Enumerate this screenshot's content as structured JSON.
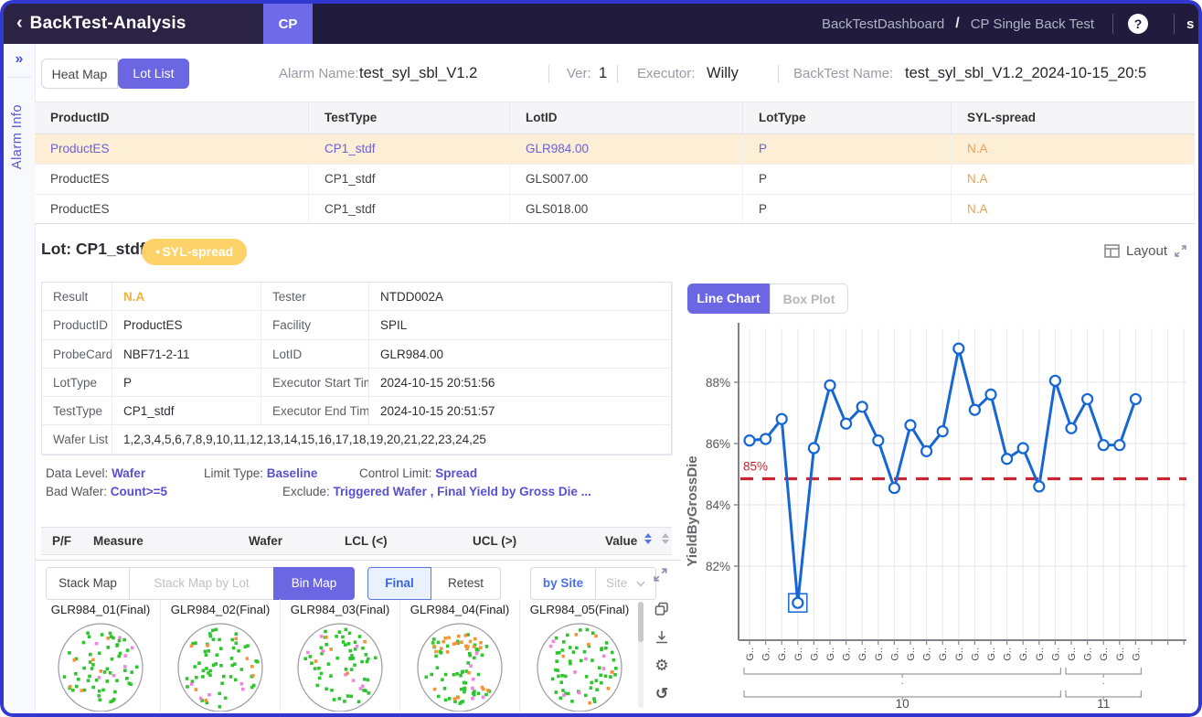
{
  "colors": {
    "accent_purple": "#6b66e2",
    "header_dark": "#211c3d",
    "badge_yellow": "#fcd269",
    "warning_orange": "#efa052",
    "link_purple": "#6a62dd",
    "criteria_purple": "#5750d2",
    "chart_blue": "#1667d3",
    "control_red": "#c92633"
  },
  "header": {
    "back_icon": "‹",
    "title": "BackTest-Analysis",
    "tab": "CP",
    "breadcrumb": {
      "parent": "BackTestDashboard",
      "separator": "/",
      "current": "CP Single Back Test"
    },
    "help": "?",
    "user_partial": "s"
  },
  "sidebar": {
    "collapse_icon": "»",
    "panel_label": "Alarm Info"
  },
  "view_tabs": {
    "heat_map": "Heat Map",
    "lot_list": "Lot List"
  },
  "alarm_bar": {
    "alarm_name_label": "Alarm Name:",
    "alarm_name": "test_syl_sbl_V1.2",
    "ver_label": "Ver:",
    "ver": "1",
    "executor_label": "Executor:",
    "executor": "Willy",
    "backtest_name_label": "BackTest Name:",
    "backtest_name": "test_syl_sbl_V1.2_2024-10-15_20:5"
  },
  "lot_table": {
    "columns": [
      "ProductID",
      "TestType",
      "LotID",
      "LotType",
      "SYL-spread"
    ],
    "rows": [
      {
        "product_id": "ProductES",
        "test_type": "CP1_stdf",
        "lot_id": "GLR984.00",
        "lot_type": "P",
        "syl_spread": "N.A",
        "selected": true
      },
      {
        "product_id": "ProductES",
        "test_type": "CP1_stdf",
        "lot_id": "GLS007.00",
        "lot_type": "P",
        "syl_spread": "N.A",
        "selected": false
      },
      {
        "product_id": "ProductES",
        "test_type": "CP1_stdf",
        "lot_id": "GLS018.00",
        "lot_type": "P",
        "syl_spread": "N.A",
        "selected": false
      }
    ]
  },
  "lot_section": {
    "title": "Lot: CP1_stdf",
    "badge": "SYL-spread",
    "layout_label": "Layout"
  },
  "detail_table": {
    "rows": [
      {
        "l1": "Result",
        "v1": "N.A",
        "l2": "Tester",
        "v2": "NTDD002A"
      },
      {
        "l1": "ProductID",
        "v1": "ProductES",
        "l2": "Facility",
        "v2": "SPIL"
      },
      {
        "l1": "ProbeCard",
        "v1": "NBF71-2-11",
        "l2": "LotID",
        "v2": "GLR984.00"
      },
      {
        "l1": "LotType",
        "v1": "P",
        "l2": "Executor Start Time",
        "v2": "2024-10-15 20:51:56"
      },
      {
        "l1": "TestType",
        "v1": "CP1_stdf",
        "l2": "Executor End Time",
        "v2": "2024-10-15 20:51:57"
      }
    ],
    "wafer_list_label": "Wafer List",
    "wafer_list": "1,2,3,4,5,6,7,8,9,10,11,12,13,14,15,16,17,18,19,20,21,22,23,24,25"
  },
  "criteria": {
    "data_level_label": "Data Level:",
    "data_level": "Wafer",
    "limit_type_label": "Limit Type:",
    "limit_type": "Baseline",
    "control_limit_label": "Control Limit:",
    "control_limit": "Spread",
    "bad_wafer_label": "Bad Wafer:",
    "bad_wafer": "Count>=5",
    "exclude_label": "Exclude:",
    "exclude": "Triggered Wafer , Final Yield by Gross Die ..."
  },
  "measure_table": {
    "col_pf": "P/F",
    "col_measure": "Measure",
    "col_wafer": "Wafer",
    "col_lcl": "LCL (<)",
    "col_ucl": "UCL (>)",
    "col_value": "Value"
  },
  "map_toolbar": {
    "stack_map": "Stack Map",
    "stack_map_by_lot": "Stack Map by Lot",
    "bin_map": "Bin Map",
    "final": "Final",
    "retest": "Retest",
    "by_site": "by Site",
    "site": "Site"
  },
  "wafer_maps": {
    "titles": [
      "GLR984_01(Final)",
      "GLR984_02(Final)",
      "GLR984_03(Final)",
      "GLR984_04(Final)",
      "GLR984_05(Final)"
    ],
    "dot_colors": {
      "pass_green": "#2ec52e",
      "fail_orange": "#f2953a",
      "fail_pink": "#ee85e0"
    }
  },
  "chart_tabs": {
    "line_chart": "Line Chart",
    "box_plot": "Box Plot"
  },
  "chart_data": {
    "type": "line",
    "ylabel": "YieldByGrossDie",
    "yticks": [
      88,
      86,
      84,
      82
    ],
    "ytick_suffix": "%",
    "ylim": [
      80,
      89.8
    ],
    "grid": true,
    "line_color": "#1667d3",
    "control_line": {
      "value": 85,
      "label": "85%",
      "color": "#c92633",
      "style": "dashed"
    },
    "x_tick_text": "G..",
    "series": [
      {
        "name": "YieldByGrossDie",
        "values": [
          86.1,
          86.15,
          86.8,
          80.8,
          85.85,
          87.9,
          86.65,
          87.2,
          86.1,
          84.55,
          86.6,
          85.75,
          86.4,
          89.1,
          87.1,
          87.6,
          85.5,
          85.85,
          84.6,
          88.05,
          86.5,
          87.45,
          85.95,
          85.95,
          87.45
        ]
      }
    ],
    "selected_index": 3,
    "groups": [
      {
        "label": "10",
        "sub_label": ".",
        "start": 0,
        "end": 19
      },
      {
        "label": "11",
        "sub_label": ".",
        "start": 20,
        "end": 24
      }
    ]
  }
}
